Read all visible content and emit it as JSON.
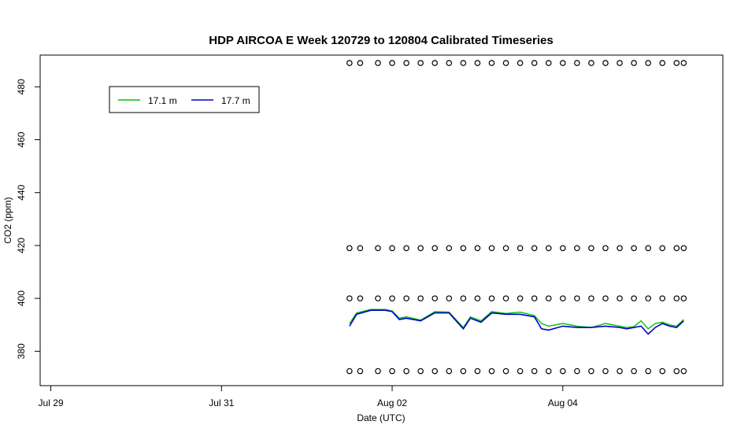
{
  "chart_data": {
    "type": "line",
    "title": "HDP AIRCOA E  Week 120729 to 120804  Calibrated Timeseries",
    "xlabel": "Date (UTC)",
    "ylabel": "CO2 (ppm)",
    "x_axis": {
      "type": "date",
      "range": [
        "2012-07-28T21:00",
        "2012-08-05T21:00"
      ],
      "ticks": [
        {
          "at": "2012-07-29T00:00",
          "label": "Jul 29"
        },
        {
          "at": "2012-07-31T00:00",
          "label": "Jul 31"
        },
        {
          "at": "2012-08-02T00:00",
          "label": "Aug 02"
        },
        {
          "at": "2012-08-04T00:00",
          "label": "Aug 04"
        }
      ]
    },
    "y_axis": {
      "range": [
        367,
        492
      ],
      "ticks": [
        380,
        400,
        420,
        440,
        460,
        480
      ]
    },
    "grid": false,
    "legend": {
      "placement": "top-left",
      "entries": [
        {
          "label": "17.1 m",
          "color": "#00c000"
        },
        {
          "label": "17.7 m",
          "color": "#0000cc"
        }
      ]
    },
    "series": [
      {
        "name": "17.1 m",
        "color": "#00c000",
        "x": [
          "2012-08-01T12:00",
          "2012-08-01T14:00",
          "2012-08-01T18:00",
          "2012-08-01T22:00",
          "2012-08-02T00:00",
          "2012-08-02T02:00",
          "2012-08-02T04:00",
          "2012-08-02T08:00",
          "2012-08-02T12:00",
          "2012-08-02T16:00",
          "2012-08-02T20:00",
          "2012-08-02T22:00",
          "2012-08-03T01:00",
          "2012-08-03T04:00",
          "2012-08-03T08:00",
          "2012-08-03T12:00",
          "2012-08-03T16:00",
          "2012-08-03T18:00",
          "2012-08-03T20:00",
          "2012-08-04T00:00",
          "2012-08-04T04:00",
          "2012-08-04T08:00",
          "2012-08-04T12:00",
          "2012-08-04T16:00",
          "2012-08-04T18:00",
          "2012-08-04T20:00",
          "2012-08-04T22:00",
          "2012-08-05T00:00",
          "2012-08-05T02:00",
          "2012-08-05T04:00",
          "2012-08-05T06:00",
          "2012-08-05T08:00",
          "2012-08-05T10:00"
        ],
        "y": [
          390.5,
          394.5,
          395.8,
          395.8,
          395.2,
          392.5,
          393.0,
          391.8,
          395.0,
          394.8,
          389.0,
          393.0,
          391.5,
          395.0,
          394.3,
          394.8,
          393.5,
          390.5,
          389.5,
          390.5,
          389.5,
          389.0,
          390.5,
          389.5,
          389.0,
          389.3,
          391.5,
          388.5,
          390.5,
          391.0,
          390.0,
          389.5,
          392.0
        ]
      },
      {
        "name": "17.7 m",
        "color": "#0000cc",
        "x": [
          "2012-08-01T12:00",
          "2012-08-01T14:00",
          "2012-08-01T18:00",
          "2012-08-01T22:00",
          "2012-08-02T00:00",
          "2012-08-02T02:00",
          "2012-08-02T04:00",
          "2012-08-02T08:00",
          "2012-08-02T12:00",
          "2012-08-02T16:00",
          "2012-08-02T20:00",
          "2012-08-02T22:00",
          "2012-08-03T01:00",
          "2012-08-03T04:00",
          "2012-08-03T08:00",
          "2012-08-03T12:00",
          "2012-08-03T16:00",
          "2012-08-03T18:00",
          "2012-08-03T20:00",
          "2012-08-04T00:00",
          "2012-08-04T04:00",
          "2012-08-04T08:00",
          "2012-08-04T12:00",
          "2012-08-04T16:00",
          "2012-08-04T18:00",
          "2012-08-04T20:00",
          "2012-08-04T22:00",
          "2012-08-05T00:00",
          "2012-08-05T02:00",
          "2012-08-05T04:00",
          "2012-08-05T06:00",
          "2012-08-05T08:00",
          "2012-08-05T10:00"
        ],
        "y": [
          389.5,
          394.0,
          395.5,
          395.5,
          395.0,
          392.0,
          392.5,
          391.5,
          394.5,
          394.5,
          388.5,
          392.5,
          391.0,
          394.5,
          394.0,
          394.0,
          393.0,
          388.5,
          388.0,
          389.5,
          389.0,
          389.0,
          389.5,
          389.0,
          388.5,
          389.0,
          389.5,
          386.5,
          389.0,
          390.5,
          389.5,
          389.0,
          391.5
        ]
      },
      {
        "name": "",
        "type": "points",
        "note_levels": [
          372.5,
          400,
          419,
          489
        ],
        "x": [
          "2012-08-01T12:00",
          "2012-08-01T15:00",
          "2012-08-01T20:00",
          "2012-08-02T00:00",
          "2012-08-02T04:00",
          "2012-08-02T08:00",
          "2012-08-02T12:00",
          "2012-08-02T16:00",
          "2012-08-02T20:00",
          "2012-08-03T00:00",
          "2012-08-03T04:00",
          "2012-08-03T08:00",
          "2012-08-03T12:00",
          "2012-08-03T16:00",
          "2012-08-03T20:00",
          "2012-08-04T00:00",
          "2012-08-04T04:00",
          "2012-08-04T08:00",
          "2012-08-04T12:00",
          "2012-08-04T16:00",
          "2012-08-04T20:00",
          "2012-08-05T00:00",
          "2012-08-05T04:00",
          "2012-08-05T08:00",
          "2012-08-05T10:00"
        ]
      }
    ]
  }
}
